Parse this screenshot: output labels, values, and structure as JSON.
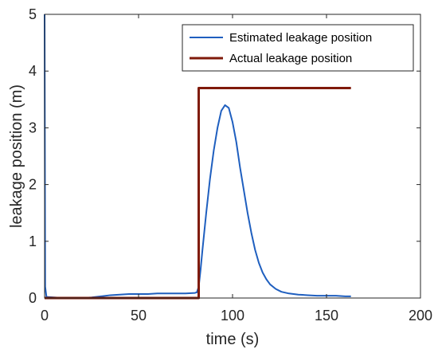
{
  "chart_data": {
    "type": "line",
    "title": "",
    "xlabel": "time (s)",
    "ylabel": "leakage position (m)",
    "xlim": [
      0,
      200
    ],
    "ylim": [
      0,
      5
    ],
    "xticks": [
      0,
      50,
      100,
      150,
      200
    ],
    "yticks": [
      0,
      1,
      2,
      3,
      4,
      5
    ],
    "grid": false,
    "legend_position": "top-right",
    "series": [
      {
        "name": "Estimated leakage position",
        "color": "#1f5fbf",
        "points": [
          [
            0,
            5.0
          ],
          [
            0.3,
            0.2
          ],
          [
            1,
            0.02
          ],
          [
            10,
            0.0
          ],
          [
            20,
            0.0
          ],
          [
            25,
            0.01
          ],
          [
            30,
            0.03
          ],
          [
            35,
            0.05
          ],
          [
            40,
            0.06
          ],
          [
            45,
            0.07
          ],
          [
            50,
            0.07
          ],
          [
            55,
            0.07
          ],
          [
            60,
            0.08
          ],
          [
            65,
            0.08
          ],
          [
            70,
            0.08
          ],
          [
            75,
            0.08
          ],
          [
            80,
            0.09
          ],
          [
            81,
            0.1
          ],
          [
            82,
            0.2
          ],
          [
            83,
            0.5
          ],
          [
            84,
            0.85
          ],
          [
            86,
            1.5
          ],
          [
            88,
            2.1
          ],
          [
            90,
            2.6
          ],
          [
            92,
            3.0
          ],
          [
            94,
            3.3
          ],
          [
            96,
            3.4
          ],
          [
            98,
            3.35
          ],
          [
            100,
            3.1
          ],
          [
            102,
            2.75
          ],
          [
            104,
            2.3
          ],
          [
            106,
            1.9
          ],
          [
            108,
            1.5
          ],
          [
            110,
            1.15
          ],
          [
            112,
            0.85
          ],
          [
            114,
            0.62
          ],
          [
            116,
            0.45
          ],
          [
            118,
            0.33
          ],
          [
            120,
            0.24
          ],
          [
            123,
            0.16
          ],
          [
            126,
            0.11
          ],
          [
            130,
            0.08
          ],
          [
            135,
            0.06
          ],
          [
            140,
            0.05
          ],
          [
            145,
            0.04
          ],
          [
            150,
            0.04
          ],
          [
            155,
            0.04
          ],
          [
            160,
            0.03
          ],
          [
            163,
            0.03
          ]
        ]
      },
      {
        "name": "Actual leakage position",
        "color": "#7f1a0a",
        "points": [
          [
            0,
            0
          ],
          [
            82,
            0
          ],
          [
            82,
            3.7
          ],
          [
            163,
            3.7
          ]
        ]
      }
    ]
  }
}
